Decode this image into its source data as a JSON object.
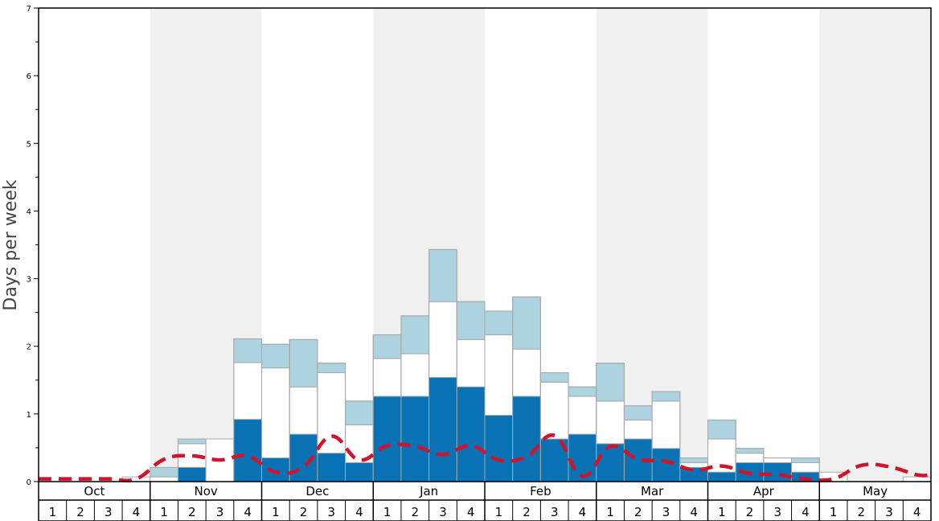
{
  "chart_data": {
    "type": "bar",
    "ylabel": "Days per week",
    "ylim": [
      0,
      7
    ],
    "y_ticks": [
      "0",
      "1",
      "2",
      "3",
      "4",
      "5",
      "6",
      "7"
    ],
    "months": [
      {
        "label": "Oct",
        "shaded": false
      },
      {
        "label": "Nov",
        "shaded": true
      },
      {
        "label": "Dec",
        "shaded": false
      },
      {
        "label": "Jan",
        "shaded": true
      },
      {
        "label": "Feb",
        "shaded": false
      },
      {
        "label": "Mar",
        "shaded": true
      },
      {
        "label": "Apr",
        "shaded": false
      },
      {
        "label": "May",
        "shaded": true
      }
    ],
    "weeks": [
      "1",
      "2",
      "3",
      "4"
    ],
    "colors": {
      "dark": "#0872b4",
      "mid": "#ffffff",
      "light": "#aed3e0",
      "shade": "#f0f0f0",
      "line": "#d0142c",
      "bar_edge": "#a7a7a7"
    },
    "series": [
      {
        "values": [
          0,
          0,
          0,
          0,
          0,
          0.21,
          0,
          0.92,
          0.35,
          0.7,
          0.42,
          0.28,
          1.26,
          1.26,
          1.54,
          1.4,
          0.98,
          1.26,
          0.63,
          0.7,
          0.56,
          0.63,
          0.49,
          0.21,
          0.14,
          0.28,
          0.28,
          0.14,
          0,
          0,
          0,
          0
        ]
      },
      {
        "values": [
          0,
          0,
          0,
          0.07,
          0.07,
          0.35,
          0.63,
          0.84,
          1.33,
          0.7,
          1.19,
          0.56,
          0.56,
          0.63,
          1.12,
          0.7,
          1.19,
          0.7,
          0.84,
          0.56,
          0.63,
          0.28,
          0.7,
          0.07,
          0.49,
          0.14,
          0.07,
          0.14,
          0.14,
          0,
          0,
          0.07
        ]
      },
      {
        "values": [
          0,
          0,
          0,
          0,
          0.14,
          0.07,
          0,
          0.35,
          0.35,
          0.7,
          0.14,
          0.35,
          0.35,
          0.56,
          0.77,
          0.56,
          0.35,
          0.77,
          0.14,
          0.14,
          0.56,
          0.21,
          0.14,
          0.07,
          0.28,
          0.07,
          0,
          0.07,
          0,
          0,
          0,
          0
        ]
      }
    ],
    "trend_line": [
      0.04,
      0.04,
      0.04,
      0.04,
      0.33,
      0.38,
      0.32,
      0.38,
      0.14,
      0.22,
      0.67,
      0.32,
      0.53,
      0.52,
      0.4,
      0.53,
      0.32,
      0.37,
      0.68,
      0.08,
      0.52,
      0.33,
      0.3,
      0.17,
      0.23,
      0.12,
      0.1,
      0.04,
      0.04,
      0.24,
      0.22,
      0.1
    ]
  }
}
